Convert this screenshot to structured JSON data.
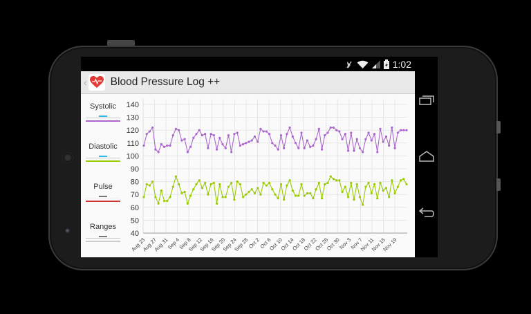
{
  "status_bar": {
    "icons": [
      "mute-icon",
      "wifi-icon",
      "signal-icon",
      "battery-charging-icon"
    ],
    "time": "1:02"
  },
  "action_bar": {
    "up_icon": "chevron-left-icon",
    "app_icon": "heart-ecg-icon",
    "title": "Blood Pressure Log ++"
  },
  "legend": [
    {
      "label": "Systolic",
      "short_color": "#33b5e5",
      "line_color": "#aa66cc"
    },
    {
      "label": "Diastolic",
      "short_color": "#33b5e5",
      "line_color": "#99cc00"
    },
    {
      "label": "Pulse",
      "short_color": "#777777",
      "line_color": "#cc3333"
    },
    {
      "label": "Ranges",
      "short_color": "#777777",
      "line_color": "#bbbbbb"
    }
  ],
  "nav_bar": {
    "buttons": [
      "recent-apps",
      "home",
      "back"
    ]
  },
  "colors": {
    "systolic": "#aa66cc",
    "diastolic": "#99cc00",
    "grid": "#e6e6e6",
    "axis": "#999999"
  },
  "chart_data": {
    "type": "line",
    "title": "",
    "xlabel": "",
    "ylabel": "",
    "ylim": [
      40,
      140
    ],
    "yticks": [
      40,
      50,
      60,
      70,
      80,
      90,
      100,
      110,
      120,
      130,
      140
    ],
    "xticks": [
      "Aug 23",
      "Aug 27",
      "Aug 31",
      "Sep 4",
      "Sep 8",
      "Sep 12",
      "Sep 16",
      "Sep 20",
      "Sep 24",
      "Sep 28",
      "Oct 2",
      "Oct 6",
      "Oct 10",
      "Oct 14",
      "Oct 18",
      "Oct 22",
      "Oct 26",
      "Oct 30",
      "Nov 3",
      "Nov 7",
      "Nov 11",
      "Nov 15",
      "Nov 19"
    ],
    "grid": true,
    "legend_position": "left",
    "series": [
      {
        "name": "Systolic",
        "values": [
          108,
          117,
          119,
          122,
          105,
          103,
          109,
          107,
          108,
          108,
          116,
          121,
          120,
          112,
          113,
          103,
          107,
          114,
          117,
          120,
          116,
          117,
          106,
          117,
          116,
          105,
          114,
          109,
          106,
          116,
          103,
          117,
          118,
          108,
          109,
          110,
          111,
          112,
          115,
          111,
          121,
          119,
          119,
          117,
          110,
          108,
          105,
          116,
          106,
          117,
          122,
          115,
          110,
          106,
          118,
          106,
          112,
          107,
          108,
          113,
          121,
          105,
          116,
          118,
          122,
          122,
          120,
          119,
          113,
          117,
          104,
          118,
          104,
          113,
          106,
          103,
          113,
          118,
          112,
          117,
          103,
          121,
          111,
          115,
          108,
          122,
          106,
          118,
          120,
          120,
          120
        ]
      },
      {
        "name": "Diastolic",
        "values": [
          68,
          78,
          77,
          80,
          68,
          63,
          73,
          65,
          65,
          68,
          76,
          84,
          78,
          71,
          72,
          63,
          69,
          74,
          78,
          81,
          75,
          79,
          70,
          78,
          79,
          63,
          78,
          68,
          68,
          76,
          79,
          66,
          80,
          78,
          68,
          70,
          72,
          74,
          71,
          75,
          70,
          79,
          77,
          79,
          74,
          70,
          67,
          78,
          66,
          77,
          81,
          73,
          69,
          69,
          78,
          69,
          71,
          71,
          67,
          74,
          79,
          67,
          78,
          79,
          84,
          82,
          81,
          81,
          72,
          76,
          68,
          79,
          66,
          78,
          68,
          62,
          76,
          79,
          71,
          78,
          67,
          79,
          73,
          75,
          68,
          81,
          71,
          76,
          81,
          82,
          78
        ]
      }
    ]
  }
}
